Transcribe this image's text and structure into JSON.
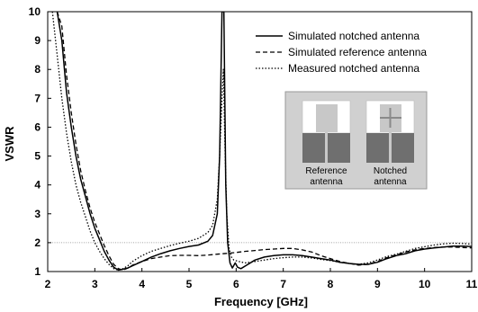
{
  "chart_data": {
    "type": "line",
    "xlabel": "Frequency [GHz]",
    "ylabel": "VSWR",
    "xlim": [
      2,
      11
    ],
    "ylim": [
      1,
      10
    ],
    "x_ticks": [
      2,
      3,
      4,
      5,
      6,
      7,
      8,
      9,
      10,
      11
    ],
    "y_ticks": [
      1,
      2,
      3,
      4,
      5,
      6,
      7,
      8,
      9,
      10
    ],
    "grid": false,
    "legend_position": "top-right",
    "reference_line": {
      "y": 2,
      "color": "#888888",
      "style": "dotted"
    },
    "series": [
      {
        "name": "Simulated notched antenna",
        "style": "solid",
        "color": "#000000",
        "points": [
          [
            2.2,
            10
          ],
          [
            2.3,
            9.0
          ],
          [
            2.4,
            7.2
          ],
          [
            2.5,
            6.0
          ],
          [
            2.6,
            5.0
          ],
          [
            2.7,
            4.2
          ],
          [
            2.8,
            3.6
          ],
          [
            2.9,
            3.0
          ],
          [
            3.0,
            2.5
          ],
          [
            3.1,
            2.1
          ],
          [
            3.2,
            1.7
          ],
          [
            3.3,
            1.4
          ],
          [
            3.4,
            1.15
          ],
          [
            3.5,
            1.05
          ],
          [
            3.6,
            1.08
          ],
          [
            3.7,
            1.12
          ],
          [
            3.8,
            1.2
          ],
          [
            4.0,
            1.35
          ],
          [
            4.2,
            1.5
          ],
          [
            4.4,
            1.62
          ],
          [
            4.6,
            1.72
          ],
          [
            4.8,
            1.8
          ],
          [
            5.0,
            1.87
          ],
          [
            5.2,
            1.92
          ],
          [
            5.4,
            2.05
          ],
          [
            5.5,
            2.25
          ],
          [
            5.6,
            3.0
          ],
          [
            5.65,
            5.0
          ],
          [
            5.7,
            10
          ],
          [
            5.74,
            10
          ],
          [
            5.78,
            4.0
          ],
          [
            5.82,
            2.0
          ],
          [
            5.87,
            1.3
          ],
          [
            5.92,
            1.12
          ],
          [
            5.98,
            1.3
          ],
          [
            6.03,
            1.15
          ],
          [
            6.1,
            1.1
          ],
          [
            6.2,
            1.2
          ],
          [
            6.4,
            1.4
          ],
          [
            6.6,
            1.5
          ],
          [
            6.8,
            1.55
          ],
          [
            7.0,
            1.58
          ],
          [
            7.2,
            1.58
          ],
          [
            7.4,
            1.55
          ],
          [
            7.6,
            1.5
          ],
          [
            7.8,
            1.45
          ],
          [
            8.0,
            1.4
          ],
          [
            8.2,
            1.32
          ],
          [
            8.4,
            1.28
          ],
          [
            8.6,
            1.25
          ],
          [
            8.8,
            1.25
          ],
          [
            9.0,
            1.32
          ],
          [
            9.2,
            1.45
          ],
          [
            9.4,
            1.55
          ],
          [
            9.6,
            1.62
          ],
          [
            9.8,
            1.72
          ],
          [
            10.0,
            1.78
          ],
          [
            10.2,
            1.82
          ],
          [
            10.4,
            1.85
          ],
          [
            10.6,
            1.88
          ],
          [
            10.8,
            1.88
          ],
          [
            11.0,
            1.87
          ]
        ]
      },
      {
        "name": "Simulated reference antenna",
        "style": "dashed",
        "color": "#000000",
        "points": [
          [
            2.2,
            10
          ],
          [
            2.3,
            9.5
          ],
          [
            2.4,
            7.8
          ],
          [
            2.5,
            6.5
          ],
          [
            2.6,
            5.4
          ],
          [
            2.7,
            4.5
          ],
          [
            2.8,
            3.8
          ],
          [
            2.9,
            3.2
          ],
          [
            3.0,
            2.7
          ],
          [
            3.1,
            2.3
          ],
          [
            3.2,
            1.9
          ],
          [
            3.3,
            1.55
          ],
          [
            3.4,
            1.25
          ],
          [
            3.5,
            1.1
          ],
          [
            3.6,
            1.05
          ],
          [
            3.7,
            1.12
          ],
          [
            3.8,
            1.22
          ],
          [
            4.0,
            1.35
          ],
          [
            4.2,
            1.45
          ],
          [
            4.4,
            1.5
          ],
          [
            4.6,
            1.55
          ],
          [
            4.8,
            1.56
          ],
          [
            5.0,
            1.56
          ],
          [
            5.2,
            1.55
          ],
          [
            5.4,
            1.57
          ],
          [
            5.6,
            1.6
          ],
          [
            5.8,
            1.63
          ],
          [
            6.0,
            1.66
          ],
          [
            6.2,
            1.7
          ],
          [
            6.4,
            1.73
          ],
          [
            6.6,
            1.76
          ],
          [
            6.8,
            1.78
          ],
          [
            7.0,
            1.8
          ],
          [
            7.2,
            1.8
          ],
          [
            7.4,
            1.75
          ],
          [
            7.6,
            1.68
          ],
          [
            7.8,
            1.55
          ],
          [
            8.0,
            1.45
          ],
          [
            8.2,
            1.35
          ],
          [
            8.4,
            1.28
          ],
          [
            8.6,
            1.22
          ],
          [
            8.8,
            1.25
          ],
          [
            9.0,
            1.35
          ],
          [
            9.2,
            1.48
          ],
          [
            9.4,
            1.58
          ],
          [
            9.6,
            1.68
          ],
          [
            9.8,
            1.75
          ],
          [
            10.0,
            1.8
          ],
          [
            10.2,
            1.83
          ],
          [
            10.4,
            1.85
          ],
          [
            10.6,
            1.85
          ],
          [
            10.8,
            1.83
          ],
          [
            11.0,
            1.82
          ]
        ]
      },
      {
        "name": "Measured notched antenna",
        "style": "dotted",
        "color": "#000000",
        "points": [
          [
            2.1,
            10
          ],
          [
            2.2,
            8.5
          ],
          [
            2.3,
            7.0
          ],
          [
            2.4,
            5.8
          ],
          [
            2.5,
            4.8
          ],
          [
            2.6,
            4.0
          ],
          [
            2.7,
            3.4
          ],
          [
            2.8,
            2.9
          ],
          [
            2.9,
            2.4
          ],
          [
            3.0,
            2.0
          ],
          [
            3.1,
            1.7
          ],
          [
            3.2,
            1.45
          ],
          [
            3.3,
            1.25
          ],
          [
            3.4,
            1.1
          ],
          [
            3.5,
            1.05
          ],
          [
            3.6,
            1.1
          ],
          [
            3.7,
            1.2
          ],
          [
            3.8,
            1.35
          ],
          [
            4.0,
            1.55
          ],
          [
            4.2,
            1.7
          ],
          [
            4.4,
            1.8
          ],
          [
            4.6,
            1.9
          ],
          [
            4.8,
            1.98
          ],
          [
            5.0,
            2.05
          ],
          [
            5.2,
            2.15
          ],
          [
            5.4,
            2.35
          ],
          [
            5.5,
            2.6
          ],
          [
            5.6,
            3.5
          ],
          [
            5.65,
            5.0
          ],
          [
            5.7,
            7.0
          ],
          [
            5.73,
            8.0
          ],
          [
            5.76,
            5.5
          ],
          [
            5.8,
            3.0
          ],
          [
            5.85,
            1.8
          ],
          [
            5.9,
            1.5
          ],
          [
            5.95,
            1.4
          ],
          [
            6.05,
            1.35
          ],
          [
            6.2,
            1.3
          ],
          [
            6.4,
            1.35
          ],
          [
            6.6,
            1.4
          ],
          [
            6.8,
            1.45
          ],
          [
            7.0,
            1.48
          ],
          [
            7.2,
            1.5
          ],
          [
            7.4,
            1.5
          ],
          [
            7.6,
            1.47
          ],
          [
            7.8,
            1.42
          ],
          [
            8.0,
            1.38
          ],
          [
            8.2,
            1.32
          ],
          [
            8.4,
            1.28
          ],
          [
            8.6,
            1.25
          ],
          [
            8.8,
            1.3
          ],
          [
            9.0,
            1.4
          ],
          [
            9.2,
            1.52
          ],
          [
            9.4,
            1.6
          ],
          [
            9.6,
            1.7
          ],
          [
            9.8,
            1.8
          ],
          [
            10.0,
            1.86
          ],
          [
            10.2,
            1.92
          ],
          [
            10.4,
            1.96
          ],
          [
            10.6,
            1.98
          ],
          [
            10.8,
            1.97
          ],
          [
            11.0,
            1.95
          ]
        ]
      }
    ],
    "inset": {
      "labels": [
        [
          "Reference",
          "antenna"
        ],
        [
          "Notched",
          "antenna"
        ]
      ]
    }
  }
}
